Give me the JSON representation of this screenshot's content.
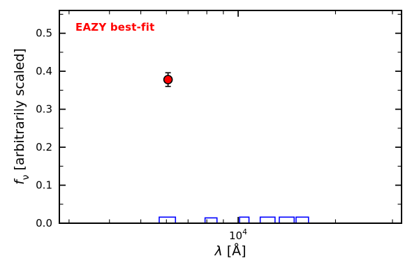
{
  "figure": {
    "background": "#ffffff",
    "annotation": {
      "text": "EAZY best-fit",
      "color": "#ff0000"
    },
    "ylabel": {
      "f": "f",
      "nu": "ν",
      "rest": " [arbitrarily scaled]"
    },
    "xlabel": {
      "lambda": "λ",
      "rest": " [Å]"
    },
    "xtick_label": {
      "base": "10",
      "exp": "4"
    }
  },
  "chart_data": {
    "type": "scatter",
    "title": "",
    "xlabel": "λ [Å]",
    "ylabel": "f_ν [arbitrarily scaled]",
    "x_scale": "log",
    "xlim": [
      2800,
      32000
    ],
    "ylim": [
      0,
      0.56
    ],
    "grid": false,
    "legend_position": "none",
    "x_major_ticks": [
      10000
    ],
    "x_major_tick_labels": [
      "10^4"
    ],
    "x_minor_ticks": [
      3000,
      4000,
      5000,
      6000,
      7000,
      8000,
      9000,
      20000,
      30000
    ],
    "y_major_ticks": [
      0.0,
      0.1,
      0.2,
      0.3,
      0.4,
      0.5
    ],
    "y_tick_labels": [
      "0.0",
      "0.1",
      "0.2",
      "0.3",
      "0.4",
      "0.5"
    ],
    "y_minor_ticks": [
      0.05,
      0.15,
      0.25,
      0.35,
      0.45,
      0.55
    ],
    "annotations": [
      {
        "text": "EAZY best-fit",
        "color": "#ff0000",
        "bold": true,
        "position": "top-left"
      }
    ],
    "series": [
      {
        "name": "best-fit photometry point",
        "type": "scatter",
        "marker": "circle",
        "color": "#ff0000",
        "edge_color": "#000000",
        "points": [
          {
            "x": 6070,
            "y": 0.378,
            "yerr": 0.018
          }
        ]
      },
      {
        "name": "filter passband boxes",
        "type": "box",
        "color": "#0000ff",
        "boxes": [
          {
            "x_min": 5700,
            "x_max": 6400,
            "height": 0.016
          },
          {
            "x_min": 7900,
            "x_max": 8600,
            "height": 0.014
          },
          {
            "x_min": 10100,
            "x_max": 10800,
            "height": 0.016
          },
          {
            "x_min": 11700,
            "x_max": 13000,
            "height": 0.016
          },
          {
            "x_min": 13400,
            "x_max": 14900,
            "height": 0.016
          },
          {
            "x_min": 15100,
            "x_max": 16500,
            "height": 0.016
          }
        ]
      }
    ]
  }
}
